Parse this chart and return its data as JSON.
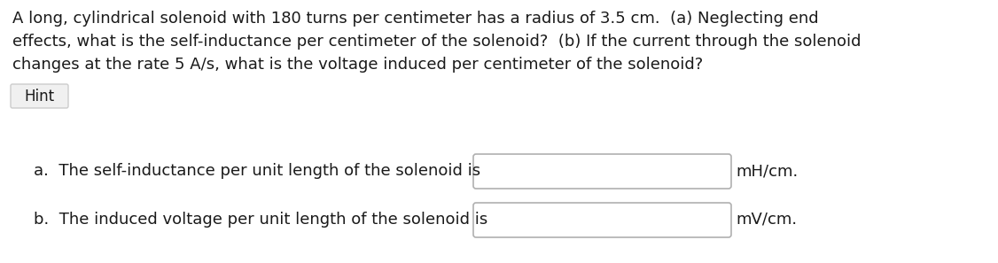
{
  "background_color": "#ffffff",
  "problem_text_lines": [
    "A long, cylindrical solenoid with 180 turns per centimeter has a radius of 3.5 cm.  (a) Neglecting end",
    "effects, what is the self-inductance per centimeter of the solenoid?  (b) If the current through the solenoid",
    "changes at the rate 5 A/s, what is the voltage induced per centimeter of the solenoid?"
  ],
  "hint_text": "Hint",
  "answer_a_text": "a.  The self-inductance per unit length of the solenoid is",
  "answer_a_unit": "mH/cm.",
  "answer_b_text": "b.  The induced voltage per unit length of the solenoid is",
  "answer_b_unit": "mV/cm.",
  "text_color": "#1a1a1a",
  "box_edge_color": "#b0b0b0",
  "box_fill_color": "#ffffff",
  "hint_box_edge_color": "#cccccc",
  "hint_box_fill_color": "#f0f0f0",
  "font_size_main": 13.0,
  "font_size_answers": 13.0,
  "font_size_hint": 12.0,
  "fig_width": 11.26,
  "fig_height": 2.97,
  "dpi": 100
}
